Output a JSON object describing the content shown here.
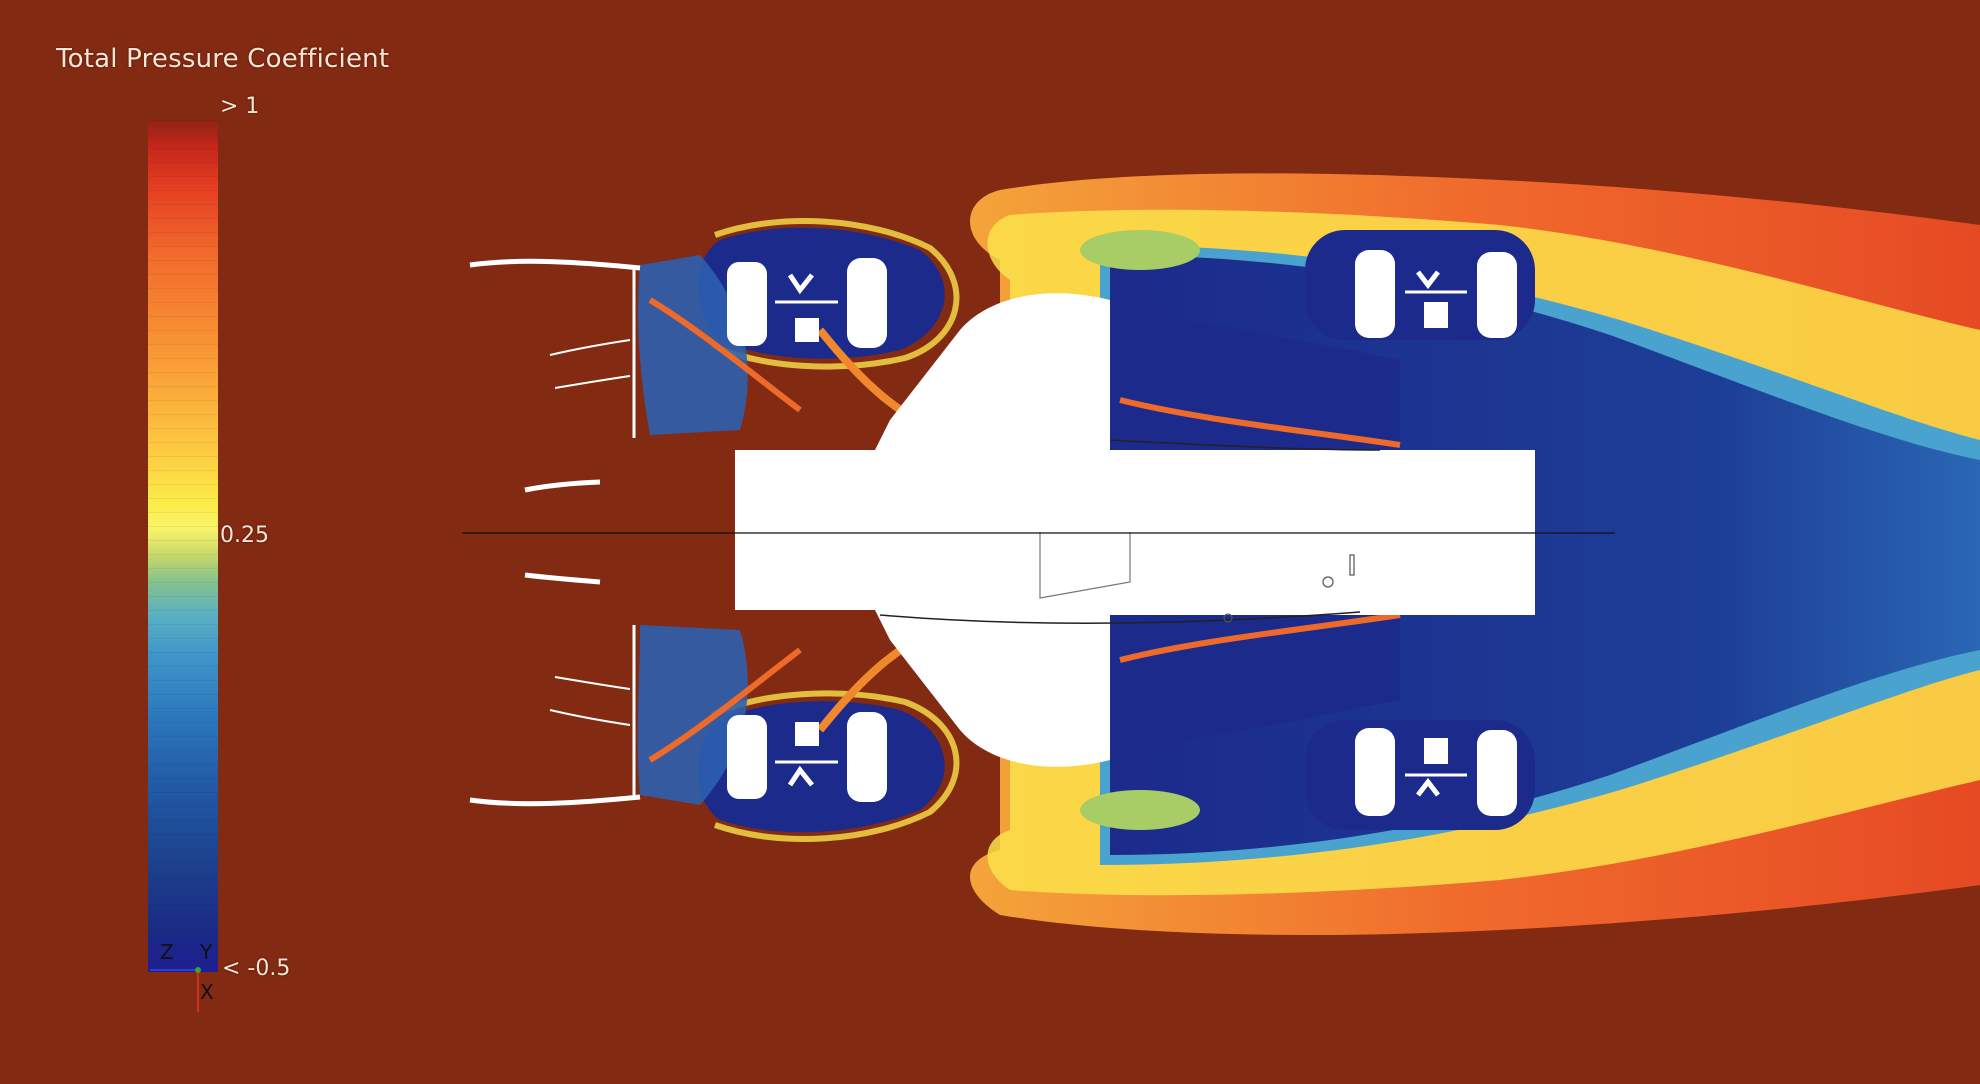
{
  "legend": {
    "title": "Total Pressure Coefficient",
    "max_label": "> 1",
    "mid_label": "0.25",
    "min_label": "< -0.5"
  },
  "axes": {
    "z": "Z",
    "y": "Y",
    "x": "X"
  },
  "colors": {
    "background": "#832a12",
    "low": "#1f1e92",
    "mid": "#fbec49",
    "high": "#8e2414"
  }
}
